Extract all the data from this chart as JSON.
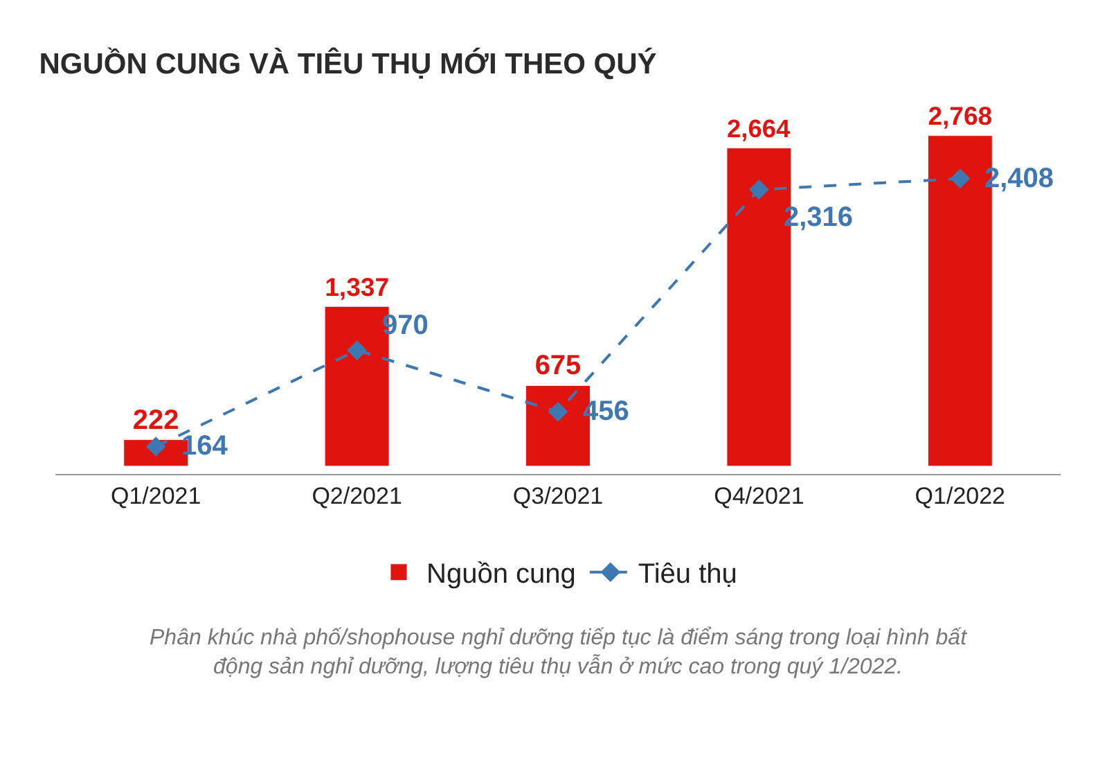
{
  "chart_data": {
    "type": "bar",
    "title": "NGUỒN CUNG VÀ TIÊU THỤ MỚI THEO QUÝ",
    "categories": [
      "Q1/2021",
      "Q2/2021",
      "Q3/2021",
      "Q4/2021",
      "Q1/2022"
    ],
    "series": [
      {
        "name": "Nguồn cung",
        "color": "#e0140f",
        "values": [
          222,
          1337,
          675,
          2664,
          2768
        ],
        "value_labels": [
          "222",
          "1,337",
          "675",
          "2,664",
          "2,768"
        ]
      },
      {
        "name": "Tiêu thụ",
        "type": "line",
        "color": "#3e78b2",
        "values": [
          164,
          970,
          456,
          2316,
          2408
        ],
        "value_labels": [
          "164",
          "970",
          "456",
          "2,316",
          "2,408"
        ],
        "marker": "diamond",
        "line_style": "dashed"
      }
    ],
    "legend": "bottom",
    "annotations": [
      "Phân khúc nhà phố/shophouse nghỉ dưỡng tiếp tục là điểm sáng trong loại hình bất động sản nghỉ dưỡng, lượng tiêu thụ vẫn ở mức cao trong quý 1/2022."
    ]
  }
}
